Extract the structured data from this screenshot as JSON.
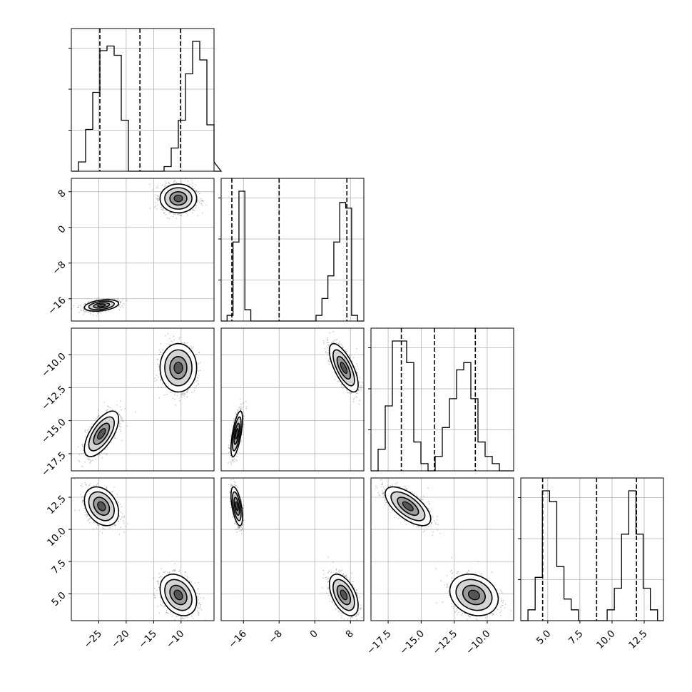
{
  "chart_data": {
    "type": "scatter",
    "layout": "corner-plot",
    "title": "",
    "grid": true,
    "colors": {
      "ink": "#000000",
      "grid": "#b0b0b0",
      "points": "#555555",
      "background": "#ffffff"
    },
    "parameters": [
      {
        "range": [
          -30,
          -4
        ],
        "ticks": [
          -25,
          -20,
          -15,
          -10
        ],
        "tick_labels": [
          "−25",
          "−20",
          "−15",
          "−10"
        ],
        "quantiles": [
          -24.8,
          -17.5,
          -10.1
        ],
        "hist": {
          "start": -30,
          "width": 1.3,
          "counts": [
            0,
            2,
            9,
            17,
            26,
            27,
            25,
            11,
            0,
            0,
            0,
            0,
            0,
            1,
            5,
            11,
            21,
            28,
            24,
            10,
            2,
            0
          ]
        }
      },
      {
        "range": [
          -21,
          11
        ],
        "ticks": [
          -16,
          -8,
          0,
          8
        ],
        "tick_labels": [
          "−16",
          "−8",
          "0",
          "8"
        ],
        "quantiles": [
          -18.6,
          -8.0,
          7.2
        ],
        "hist": {
          "start": -21,
          "width": 1.33,
          "counts": [
            0,
            1,
            14,
            23,
            2,
            0,
            0,
            0,
            0,
            0,
            0,
            0,
            0,
            0,
            0,
            0,
            1,
            4,
            8,
            14,
            21,
            20,
            1,
            0
          ]
        }
      },
      {
        "range": [
          -18.8,
          -8
        ],
        "ticks": [
          -10,
          -12.5,
          -15,
          -17.5
        ],
        "tick_labels": [
          "−10.0",
          "−12.5",
          "−15.0",
          "−17.5"
        ],
        "quantiles": [
          -16.5,
          -14.0,
          -10.9
        ],
        "hist": {
          "start": -18.8,
          "width": 0.54,
          "counts": [
            0,
            3,
            9,
            18,
            18,
            15,
            4,
            1,
            0,
            2,
            6,
            10,
            14,
            15,
            10,
            4,
            2,
            1,
            0,
            0
          ]
        }
      },
      {
        "range": [
          2.9,
          14
        ],
        "ticks": [
          5,
          7.5,
          10,
          12.5
        ],
        "tick_labels": [
          "5.0",
          "7.5",
          "10.0",
          "12.5"
        ],
        "quantiles": [
          4.6,
          8.8,
          11.9
        ],
        "hist": {
          "start": 2.9,
          "width": 0.56,
          "counts": [
            0,
            1,
            4,
            12,
            11,
            5,
            2,
            1,
            0,
            0,
            0,
            0,
            1,
            3,
            8,
            12,
            8,
            3,
            1,
            0
          ]
        }
      }
    ],
    "y_tick_params": [
      null,
      1,
      2,
      3
    ],
    "x_tick_params": [
      0,
      1,
      2,
      3
    ],
    "modes": [
      {
        "mean": [
          -24.5,
          -17.5,
          -16.0,
          11.8
        ],
        "sd": [
          1.45,
          0.6,
          0.8,
          0.7
        ]
      },
      {
        "mean": [
          -10.5,
          6.5,
          -11.0,
          4.9
        ],
        "sd": [
          1.55,
          1.5,
          0.85,
          0.75
        ]
      }
    ],
    "correlations": {
      "0-1": [
        0.35,
        0.0
      ],
      "0-2": [
        0.65,
        0.0
      ],
      "0-3": [
        -0.3,
        -0.3
      ],
      "1-2": [
        0.65,
        -0.7
      ],
      "1-3": [
        -0.55,
        -0.5
      ],
      "2-3": [
        -0.65,
        -0.2
      ]
    },
    "contour_levels": [
      1,
      1.6,
      2.15
    ]
  }
}
